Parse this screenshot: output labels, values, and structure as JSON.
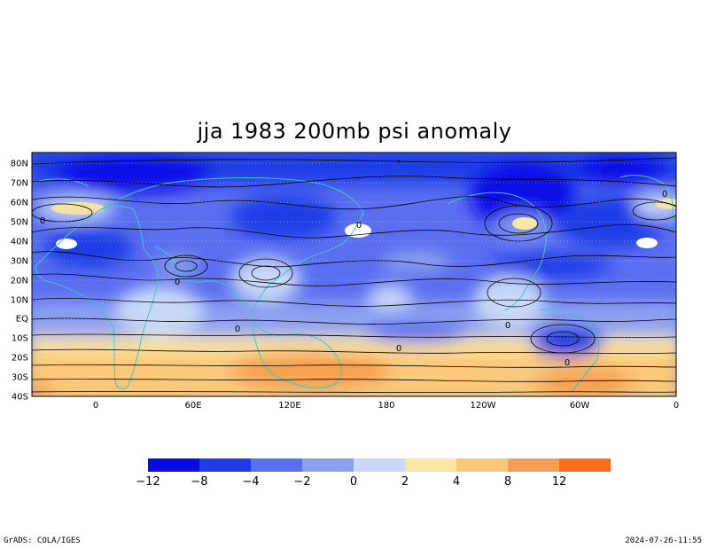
{
  "title": "jja 1983 200mb psi anomaly",
  "footer": {
    "left": "GrADS: COLA/IGES",
    "right": "2024-07-26-11:55"
  },
  "axes": {
    "lat_labels": [
      "80N",
      "70N",
      "60N",
      "50N",
      "40N",
      "30N",
      "20N",
      "10N",
      "EQ",
      "10S",
      "20S",
      "30S",
      "40S"
    ],
    "lon_labels": [
      "0",
      "60E",
      "120E",
      "180",
      "120W",
      "60W",
      "0"
    ]
  },
  "colorbar": {
    "colors": [
      "#0a0ae6",
      "#1e3ce6",
      "#5a6ef0",
      "#8ca0f0",
      "#c8d8f8",
      "#fae6a0",
      "#fac878",
      "#f5a050",
      "#fa6e1e"
    ],
    "labels": [
      "−12",
      "−8",
      "−4",
      "−2",
      "0",
      "2",
      "4",
      "8",
      "12"
    ]
  },
  "contour_labels": [
    "0",
    "0",
    "0",
    "0",
    "0",
    "0",
    "0",
    "0"
  ],
  "colors": {
    "coastline": "#3cc8c8",
    "streamline": "#000000"
  }
}
